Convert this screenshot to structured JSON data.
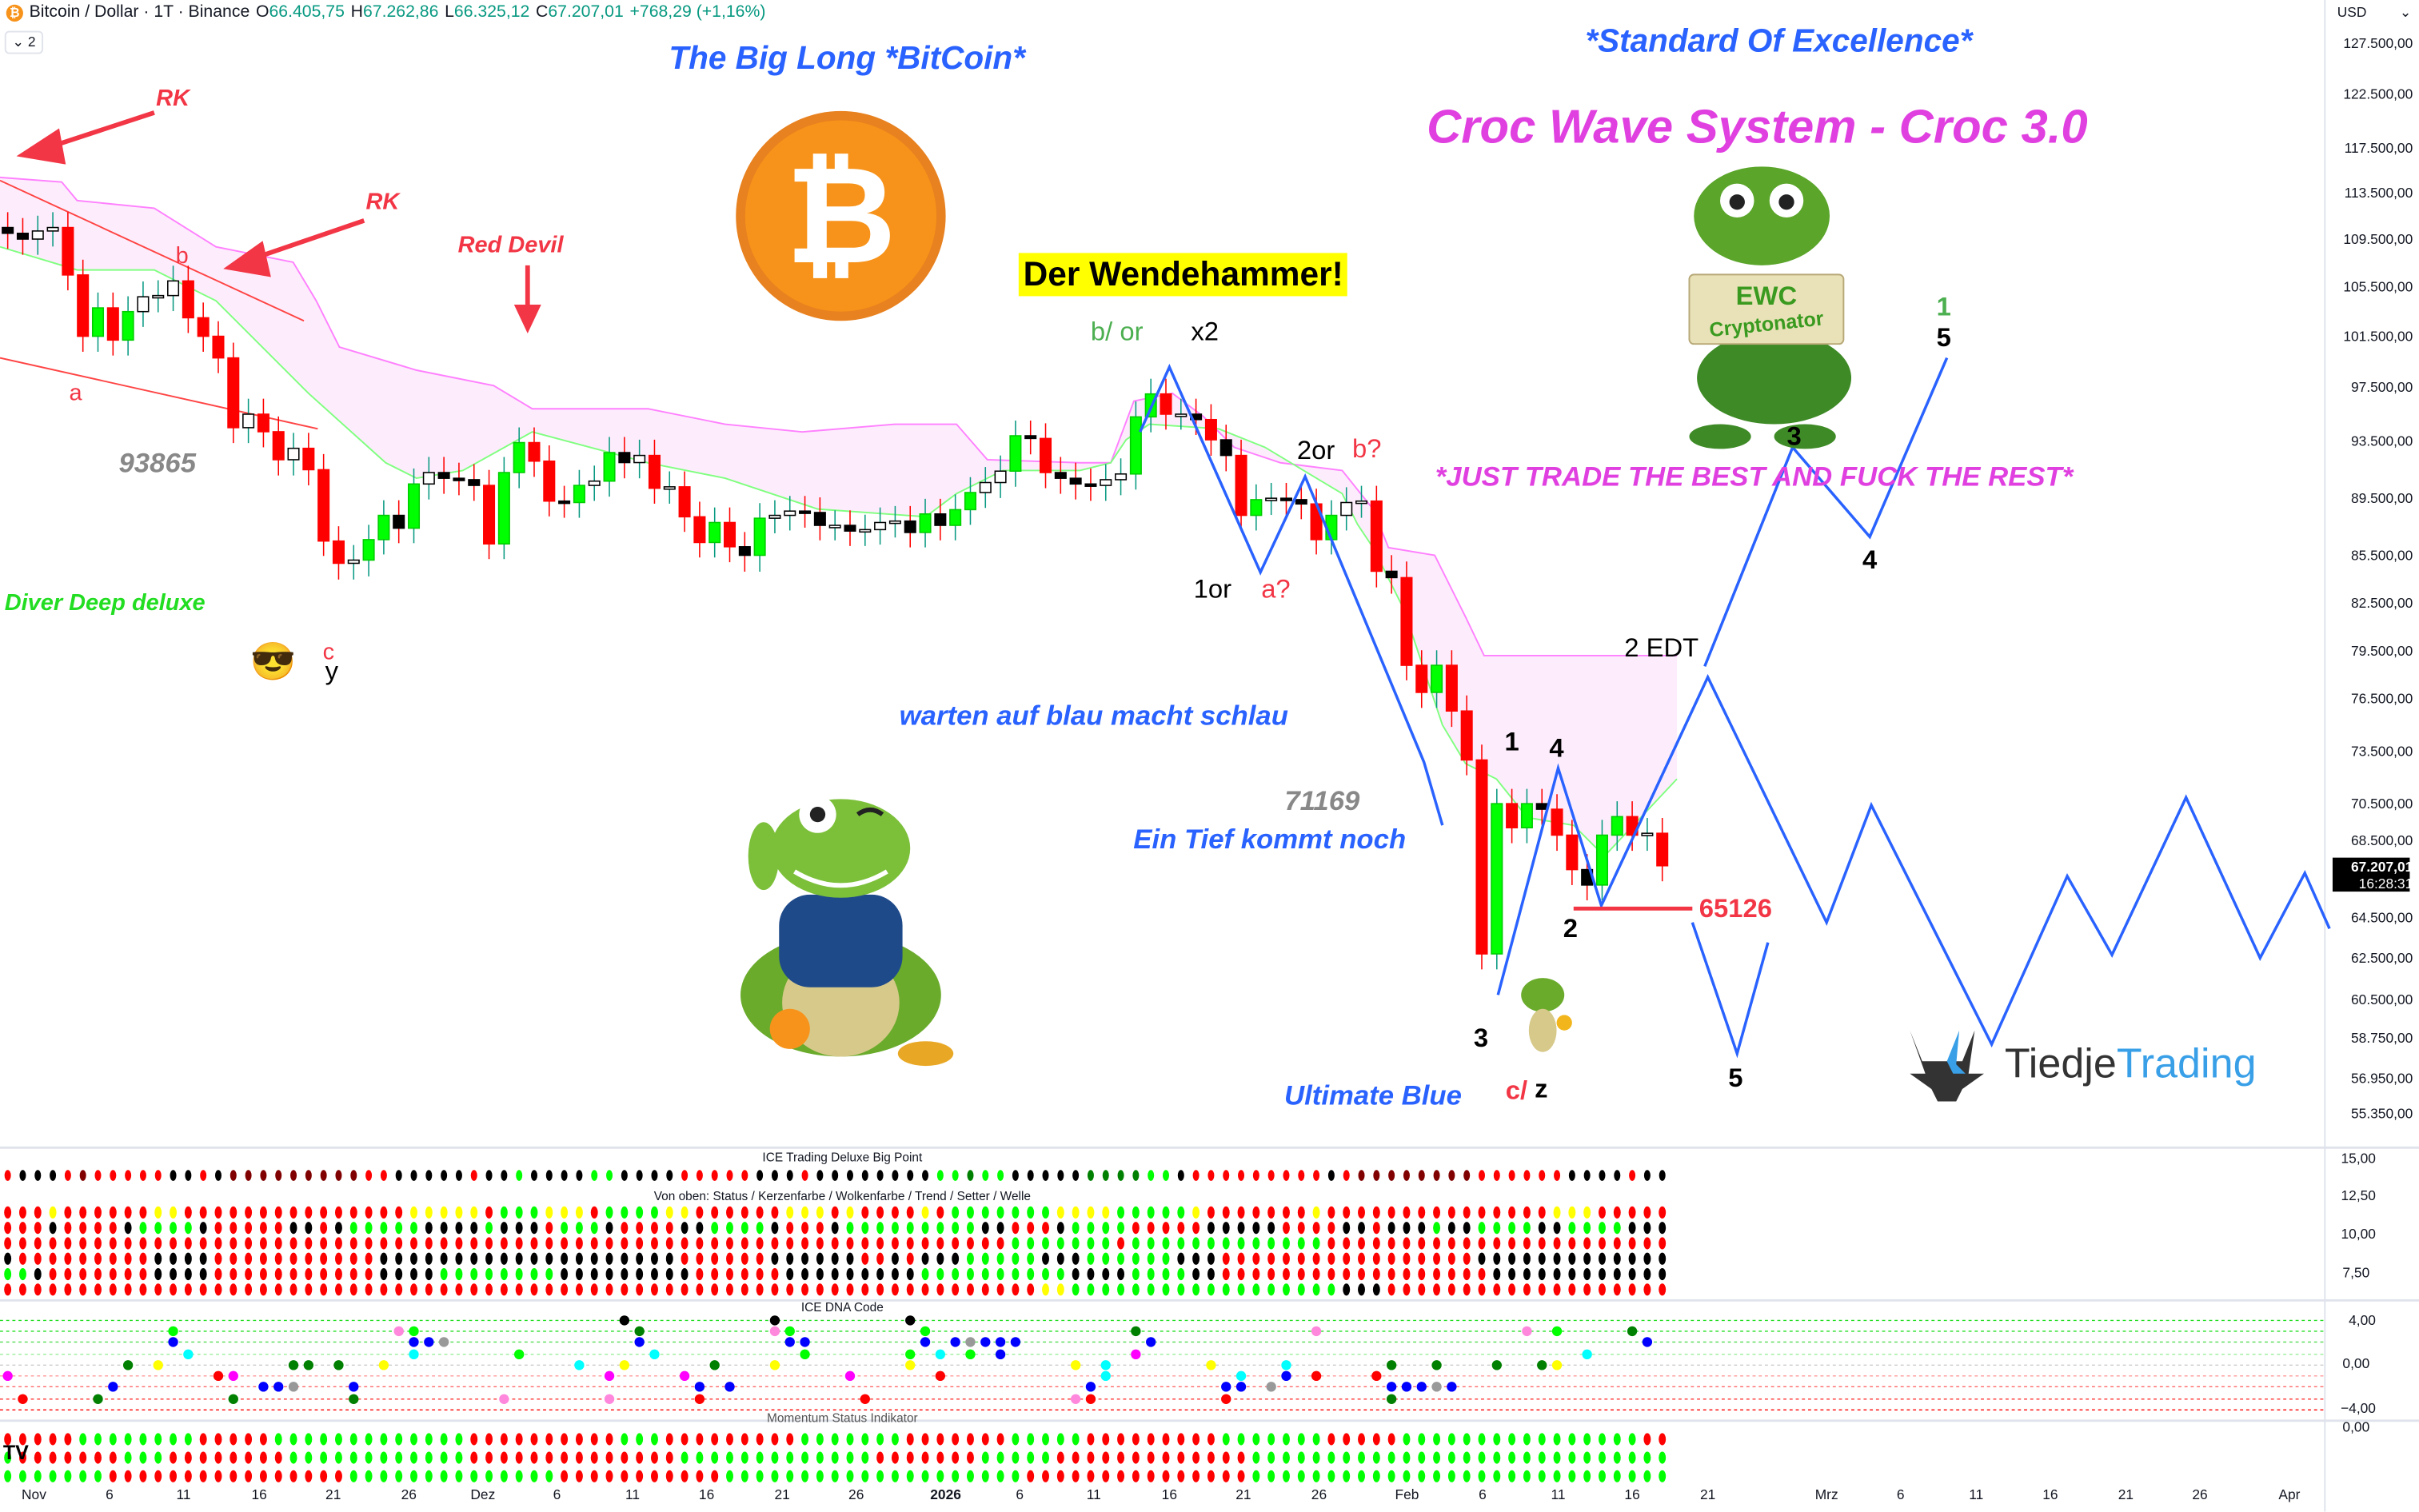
{
  "header": {
    "symbol": "Bitcoin / Dollar · 1T · Binance",
    "o_label": "O",
    "o": "66.405,75",
    "h_label": "H",
    "h": "67.262,86",
    "l_label": "L",
    "l": "66.325,12",
    "c_label": "C",
    "c": "67.207,01",
    "change": "+768,29 (+1,16%)",
    "collapse_count": "2",
    "currency": "USD"
  },
  "price_axis": {
    "ticks": [
      "127.500,00",
      "122.500,00",
      "117.500,00",
      "113.500,00",
      "109.500,00",
      "105.500,00",
      "101.500,00",
      "97.500,00",
      "93.500,00",
      "89.500,00",
      "85.500,00",
      "82.500,00",
      "79.500,00",
      "76.500,00",
      "73.500,00",
      "70.500,00",
      "68.500,00",
      "64.500,00",
      "62.500,00",
      "60.500,00",
      "58.750,00",
      "56.950,00",
      "55.350,00"
    ],
    "tick_values": [
      127500,
      122500,
      117500,
      113500,
      109500,
      105500,
      101500,
      97500,
      93500,
      89500,
      85500,
      82500,
      79500,
      76500,
      73500,
      70500,
      68500,
      64500,
      62500,
      60500,
      58750,
      56950,
      55350
    ],
    "current_price": "67.207,01",
    "countdown": "16:28:31"
  },
  "indicator_axes": {
    "big_point": [
      "15,00",
      "12,50",
      "10,00",
      "7,50"
    ],
    "dna": [
      "4,00",
      "0,00",
      "−4,00"
    ],
    "momentum": [
      "0,00"
    ]
  },
  "time_axis": [
    "Nov",
    "6",
    "11",
    "16",
    "21",
    "26",
    "Dez",
    "6",
    "11",
    "16",
    "21",
    "26",
    "2026",
    "6",
    "11",
    "16",
    "21",
    "26",
    "Feb",
    "6",
    "11",
    "16",
    "21",
    "Mrz",
    "6",
    "11",
    "16",
    "21",
    "26",
    "Apr"
  ],
  "candles": {
    "first_day": "Oct 30",
    "closes_k": [
      110.0,
      109.5,
      110.2,
      110.5,
      106.5,
      101.5,
      103.8,
      101.2,
      103.5,
      104.7,
      104.8,
      106.0,
      103.0,
      101.5,
      99.8,
      94.5,
      95.5,
      94.2,
      92.2,
      93.0,
      91.5,
      86.5,
      85.0,
      85.2,
      86.6,
      88.3,
      87.4,
      90.5,
      91.3,
      90.9,
      90.8,
      90.4,
      86.3,
      91.3,
      93.4,
      92.1,
      89.3,
      89.2,
      90.4,
      90.7,
      92.7,
      92.0,
      92.5,
      90.2,
      90.3,
      88.2,
      86.4,
      87.8,
      86.1,
      85.5,
      88.1,
      88.3,
      88.6,
      88.5,
      87.6,
      87.6,
      87.2,
      87.3,
      87.8,
      87.9,
      87.1,
      88.4,
      87.6,
      88.7,
      89.9,
      90.6,
      91.4,
      93.9,
      93.7,
      91.3,
      90.9,
      90.5,
      90.4,
      90.8,
      91.2,
      95.3,
      97.0,
      95.5,
      95.5,
      95.1,
      93.6,
      92.5,
      88.3,
      89.4,
      89.5,
      89.4,
      89.1,
      86.6,
      88.3,
      89.2,
      89.3,
      84.5,
      84.1,
      78.6,
      76.9,
      78.6,
      75.8,
      73.0,
      62.7,
      70.5,
      69.2,
      70.5,
      70.2,
      68.8,
      67.0,
      66.2,
      68.8,
      69.8,
      68.8,
      68.9,
      67.2
    ]
  },
  "annotations": {
    "title_big_long": "The Big Long *BitCoin*",
    "standard": "*Standard Of Excellence*",
    "croc_wave": "Croc Wave System - Croc 3.0",
    "wendehammer": "Der Wendehammer!",
    "just_trade": "*JUST TRADE THE BEST AND FUCK THE REST*",
    "rk1": "RK",
    "rk2": "RK",
    "red_devil": "Red Devil",
    "b_top": "b",
    "a_left": "a",
    "c_left": "c",
    "y_left": "y",
    "level_93865": "93865",
    "diver": "Diver Deep deluxe",
    "b_or": "b/ or",
    "x2": "x2",
    "two_or": "2or",
    "b_q": "b?",
    "one_or": "1or",
    "a_q": "a?",
    "warten": "warten auf blau macht schlau",
    "level_71169": "71169",
    "ein_tief": "Ein Tief kommt noch",
    "ultimate_blue": "Ultimate Blue",
    "c_slash": "c/",
    "z": "z",
    "w3_low": "3",
    "w1": "1",
    "w4": "4",
    "w2": "2",
    "two_edt": "2 EDT",
    "w5_low": "5",
    "level_65126": "65126",
    "w3_high": "3",
    "w4_high": "4",
    "w1_green": "1",
    "w5_high": "5",
    "ewc": "EWC",
    "cryptonator": "Cryptonator",
    "brand_a": "Tiedje",
    "brand_b": "Trading",
    "emoji": "😎"
  },
  "panels": {
    "big_point_title": "ICE Trading Deluxe Big Point",
    "rows_title": "Von oben: Status / Kerzenfarbe / Wolkenfarbe / Trend / Setter / Welle",
    "dna_title": "ICE DNA Code",
    "momentum_title": "Momentum Status Indikator",
    "big_point": "rkkkrDrrrrrkkrkDDDDDDDDDrrkkkkkrkkgkkkkggkkkkrrrrrkkkrkkkkkkkkggGggkkkkkGGGGggkrrrrrrrrrkrDDDDDDDDrrrrrrkkkkrk",
    "status_rows": [
      "rrryrrrrrryyrrrrrrrrrrrrrrryyyyyrgggyyyrggggyyrrrrrryyyryrrrryrgggggggyyyygggggyrrrrrrryrrrrrrrrrrrrrrryyyrrr",
      "rrrkrrrrkggggkrrrrrkkrkgggggkkkkgkkkrgggkrrrrkkggggkrrrkgggggggggkkrrrkggggrrrrrkkkkkrrrrkkrkkkgkkggggkkggggk",
      "rrrrrrrrrrrrrrrrrrrrrrrrrrrrrrrrrrrrrrrrrrrrrrrrrrrrrrrrrrrrrrrrrrrgggggggrgggggggggggggrrrrrrrrrrrrrrrrrrrrrrrr",
      "krrrrrrrrrkkkkrrrrrrrrrrrkkkkkkkkkkkkkkkkkkkkrrrrrrkkkkkkrrkrkkkgggggkkkggggggkkkrrrrrrrrrrrrrrrrrkkkkkkkkkkk",
      "ggkrrrrrrrkkkkrrrrrrrrrrrkkkkggggggggkkkkkkkkkrrrrrrkkkkkkkkkggggggggggkkkkggggkkrrrrrrrrrrrrrrrrrrkkkkkkkkkk",
      "rrrrrrrrrrrrrrrrrrrrrrrrrrrrrrrrrrrrrrrrrrrrrrrrrrrrrrrrrrrrrrrrrrrrryyggggggggggggggggggkkkrrrrrrrrrrrrrrrrrrrrr"
    ],
    "dna_dots": [
      "0:5:m",
      "1:7:r",
      "6:7:G",
      "7:6:b",
      "8:4:G",
      "10:4:y",
      "11:1:g",
      "11:2:b",
      "12:3:c",
      "14:5:r",
      "15:5:m",
      "15:7:G",
      "17:6:b",
      "18:6:b",
      "19:6:a",
      "19:4:G",
      "20:4:G",
      "22:4:G",
      "23:6:b",
      "23:7:G",
      "25:4:y",
      "26:1:p",
      "27:1:g",
      "27:2:b",
      "27:3:c",
      "28:2:b",
      "29:2:a",
      "33:7:p",
      "34:3:g",
      "38:4:c",
      "40:5:m",
      "40:7:p",
      "41:0:k",
      "41:4:y",
      "42:1:G",
      "42:2:b",
      "43:3:c",
      "45:5:m",
      "46:6:b",
      "46:7:r",
      "47:4:G",
      "48:6:b",
      "51:0:k",
      "51:1:p",
      "51:4:y",
      "52:1:g",
      "52:2:b",
      "53:2:b",
      "53:3:g",
      "56:5:m",
      "57:7:r",
      "60:0:k",
      "60:3:g",
      "60:4:y",
      "61:1:g",
      "61:2:b",
      "62:3:c",
      "62:5:r",
      "63:2:b",
      "64:2:a",
      "64:3:g",
      "65:2:b",
      "66:2:b",
      "66:3:b",
      "67:2:b",
      "71:4:y",
      "71:7:p",
      "72:6:b",
      "72:7:r",
      "73:4:c",
      "73:5:c",
      "75:1:G",
      "75:3:m",
      "76:2:b",
      "80:4:y",
      "81:6:b",
      "81:7:r",
      "82:5:c",
      "82:6:b",
      "84:6:a",
      "85:4:c",
      "85:5:b",
      "87:1:p",
      "87:5:r",
      "91:5:r",
      "92:4:G",
      "92:6:b",
      "92:7:G",
      "93:6:b",
      "94:6:b",
      "95:4:G",
      "95:6:a",
      "96:6:b",
      "99:4:G",
      "101:1:p",
      "102:4:G",
      "103:1:g",
      "103:4:y",
      "105:3:c",
      "108:1:G",
      "109:2:b"
    ],
    "momentum_rows": [
      "rrrrrggggggggrrrrrgggggggggggggrrrrrrrrrrgggrrrrrrrrrgggggggrrrrrrrgggggrrrrrrrrrgggggggrrrrrggggggggggggggggr",
      "grrrrrrrgggrrrrrrrrggggggggggggrrrrrrrrrrrrrrgggggggggggggrrrrrrrgggggrrrrrrrrrrrrrgggggggggggggggggggggggggggg",
      "gggggggrrrrrrrrrrrrrrrrggggggggggggggrrrrrrrrrrrggggggggggggggggggggrrrrrrrrrrrrrrrgggggggggggggggggggggggggggg"
    ]
  },
  "colors": {
    "up": "#00ff00",
    "down": "#ff0000",
    "wave": "#2962ff",
    "cloud_upper": "#ff80ff",
    "cloud_lower": "#80ff80",
    "cloud_fill": "#fde8fb",
    "magenta_text": "#e040e0",
    "blue_text": "#2962ff",
    "red_text": "#f23645"
  }
}
